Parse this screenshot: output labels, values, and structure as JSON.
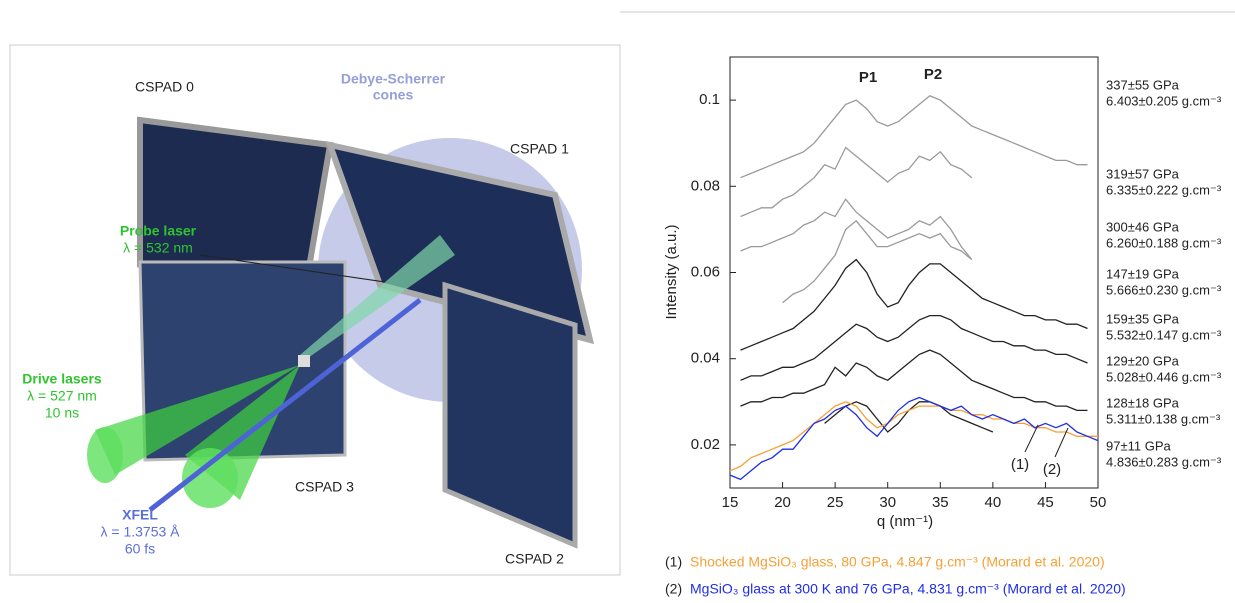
{
  "diagram": {
    "cones": [
      "Debye-Scherrer",
      "cones"
    ],
    "cspad0": "CSPAD 0",
    "cspad1": "CSPAD 1",
    "cspad2": "CSPAD 2",
    "cspad3": "CSPAD 3",
    "probe": [
      "Probe laser",
      "λ = 532 nm"
    ],
    "drive": [
      "Drive lasers",
      "λ = 527 nm",
      "10 ns"
    ],
    "xfel": [
      "XFEL",
      "λ = 1.3753 Å",
      "60 fs"
    ]
  },
  "chart_data": {
    "type": "line",
    "ylabel": "Intensity (a.u.)",
    "xlabel": "q (nm⁻¹)",
    "annotations": [
      "P1",
      "P2",
      "(1)",
      "(2)"
    ],
    "xlim": [
      15,
      50
    ],
    "xticks": [
      15,
      20,
      25,
      30,
      35,
      40,
      45,
      50
    ],
    "ylim": [
      0.01,
      0.11
    ],
    "yticks": [
      0.02,
      0.04,
      0.06,
      0.08,
      0.1
    ],
    "x": [
      15,
      16,
      17,
      18,
      19,
      20,
      21,
      22,
      23,
      24,
      25,
      26,
      27,
      28,
      29,
      30,
      31,
      32,
      33,
      34,
      35,
      36,
      37,
      38,
      39,
      40,
      41,
      42,
      43,
      44,
      45,
      46,
      47,
      48,
      49,
      50
    ],
    "series": [
      {
        "name": "337±55 GPa",
        "density": "6.403±0.205 g.cm⁻³",
        "color": "#9a9a9a",
        "values": [
          null,
          0.082,
          0.083,
          0.084,
          0.085,
          0.086,
          0.087,
          0.088,
          0.09,
          0.093,
          0.096,
          0.099,
          0.1,
          0.098,
          0.095,
          0.094,
          0.095,
          0.097,
          0.099,
          0.101,
          0.1,
          0.098,
          0.096,
          0.094,
          0.093,
          0.092,
          0.091,
          0.09,
          0.089,
          0.088,
          0.087,
          0.086,
          0.086,
          0.085,
          0.085,
          null
        ]
      },
      {
        "name": "319±57 GPa",
        "density": "6.335±0.222 g.cm⁻³",
        "color": "#9a9a9a",
        "values": [
          null,
          0.073,
          0.074,
          0.075,
          0.075,
          0.077,
          0.078,
          0.08,
          0.082,
          0.085,
          0.084,
          0.089,
          0.087,
          0.085,
          0.083,
          0.081,
          0.083,
          0.084,
          0.087,
          0.086,
          0.088,
          0.085,
          0.084,
          0.082,
          null,
          null,
          null,
          null,
          null,
          null,
          null,
          null,
          null,
          null,
          null,
          null
        ]
      },
      {
        "name": "300±46 GPa",
        "density": "6.260±0.188 g.cm⁻³",
        "color": "#9a9a9a",
        "values": [
          null,
          0.065,
          0.066,
          0.066,
          0.067,
          0.068,
          0.069,
          0.071,
          0.072,
          0.074,
          0.073,
          0.077,
          0.074,
          0.072,
          0.07,
          0.068,
          0.069,
          0.07,
          0.072,
          0.071,
          0.073,
          0.07,
          0.066,
          0.063,
          null,
          null,
          null,
          null,
          null,
          null,
          null,
          null,
          null,
          null,
          null,
          null
        ]
      },
      {
        "name": "147±19 GPa",
        "density": "5.666±0.230 g.cm⁻³",
        "color": "#9a9a9a",
        "values": [
          null,
          null,
          null,
          null,
          null,
          0.053,
          0.055,
          0.056,
          0.058,
          0.061,
          0.064,
          0.07,
          0.072,
          0.069,
          0.066,
          0.066,
          0.067,
          0.068,
          0.069,
          0.068,
          0.069,
          0.066,
          0.065,
          0.063,
          null,
          null,
          null,
          null,
          null,
          null,
          null,
          null,
          null,
          null,
          null,
          null
        ]
      },
      {
        "name": "159±35 GPa",
        "density": "5.532±0.147 g.cm⁻³",
        "color": "#222222",
        "values": [
          null,
          0.042,
          0.043,
          0.044,
          0.045,
          0.046,
          0.047,
          0.049,
          0.051,
          0.054,
          0.057,
          0.061,
          0.063,
          0.06,
          0.055,
          0.052,
          0.053,
          0.057,
          0.06,
          0.062,
          0.062,
          0.06,
          0.058,
          0.056,
          0.054,
          0.053,
          0.052,
          0.051,
          0.05,
          0.05,
          0.049,
          0.049,
          0.048,
          0.048,
          0.047,
          null
        ]
      },
      {
        "name": "129±20 GPa",
        "density": "5.028±0.446 g.cm⁻³",
        "color": "#222222",
        "values": [
          null,
          0.035,
          0.036,
          0.036,
          0.037,
          0.038,
          0.038,
          0.039,
          0.04,
          0.042,
          0.044,
          0.046,
          0.048,
          0.047,
          0.045,
          0.044,
          0.045,
          0.047,
          0.049,
          0.05,
          0.05,
          0.049,
          0.047,
          0.046,
          0.045,
          0.044,
          0.044,
          0.043,
          0.043,
          0.042,
          0.042,
          0.041,
          0.041,
          0.04,
          0.039,
          null
        ]
      },
      {
        "name": "128±18 GPa",
        "density": "5.311±0.138 g.cm⁻³",
        "color": "#222222",
        "values": [
          null,
          0.029,
          0.03,
          0.03,
          0.031,
          0.031,
          0.032,
          0.032,
          0.033,
          0.034,
          0.038,
          0.036,
          0.039,
          0.038,
          0.036,
          0.035,
          0.037,
          0.039,
          0.041,
          0.042,
          0.041,
          0.039,
          0.037,
          0.035,
          0.034,
          0.033,
          0.032,
          0.031,
          0.031,
          0.03,
          0.03,
          0.029,
          0.029,
          0.028,
          0.028,
          null
        ]
      },
      {
        "name": "97±11 GPa",
        "density": "4.836±0.283 g.cm⁻³",
        "color": "#222222",
        "values": [
          null,
          null,
          null,
          null,
          null,
          null,
          null,
          null,
          null,
          0.025,
          0.027,
          0.029,
          0.03,
          0.029,
          0.026,
          0.023,
          0.025,
          0.028,
          0.03,
          0.03,
          0.029,
          0.027,
          0.026,
          0.025,
          0.024,
          0.023,
          null,
          null,
          null,
          null,
          null,
          null,
          null,
          null,
          null,
          null
        ]
      },
      {
        "name": "Shocked MgSiO₃ glass, 80 GPa, 4.847 g.cm⁻³ (Morard et al. 2020)",
        "key": "(1)",
        "color": "#f7a035",
        "values": [
          0.014,
          0.015,
          0.017,
          0.018,
          0.019,
          0.02,
          0.021,
          0.023,
          0.025,
          0.027,
          0.029,
          0.03,
          0.029,
          0.026,
          0.024,
          0.025,
          0.027,
          0.028,
          0.029,
          0.029,
          0.029,
          0.028,
          0.028,
          0.027,
          0.027,
          0.026,
          0.026,
          0.025,
          0.025,
          0.024,
          0.024,
          0.023,
          0.023,
          0.022,
          0.022,
          0.022
        ]
      },
      {
        "name": "MgSiO₃ glass at 300 K and 76 GPa, 4.831 g.cm⁻³ (Morard et al. 2020)",
        "key": "(2)",
        "color": "#1f2ee8",
        "values": [
          0.013,
          0.012,
          0.014,
          0.016,
          0.017,
          0.019,
          0.019,
          0.022,
          0.025,
          0.026,
          0.028,
          0.029,
          0.027,
          0.024,
          0.022,
          0.025,
          0.028,
          0.03,
          0.031,
          0.03,
          0.029,
          0.028,
          0.029,
          0.027,
          0.026,
          0.027,
          0.026,
          0.025,
          0.026,
          0.024,
          0.025,
          0.024,
          0.025,
          0.023,
          0.022,
          0.021
        ]
      }
    ]
  }
}
